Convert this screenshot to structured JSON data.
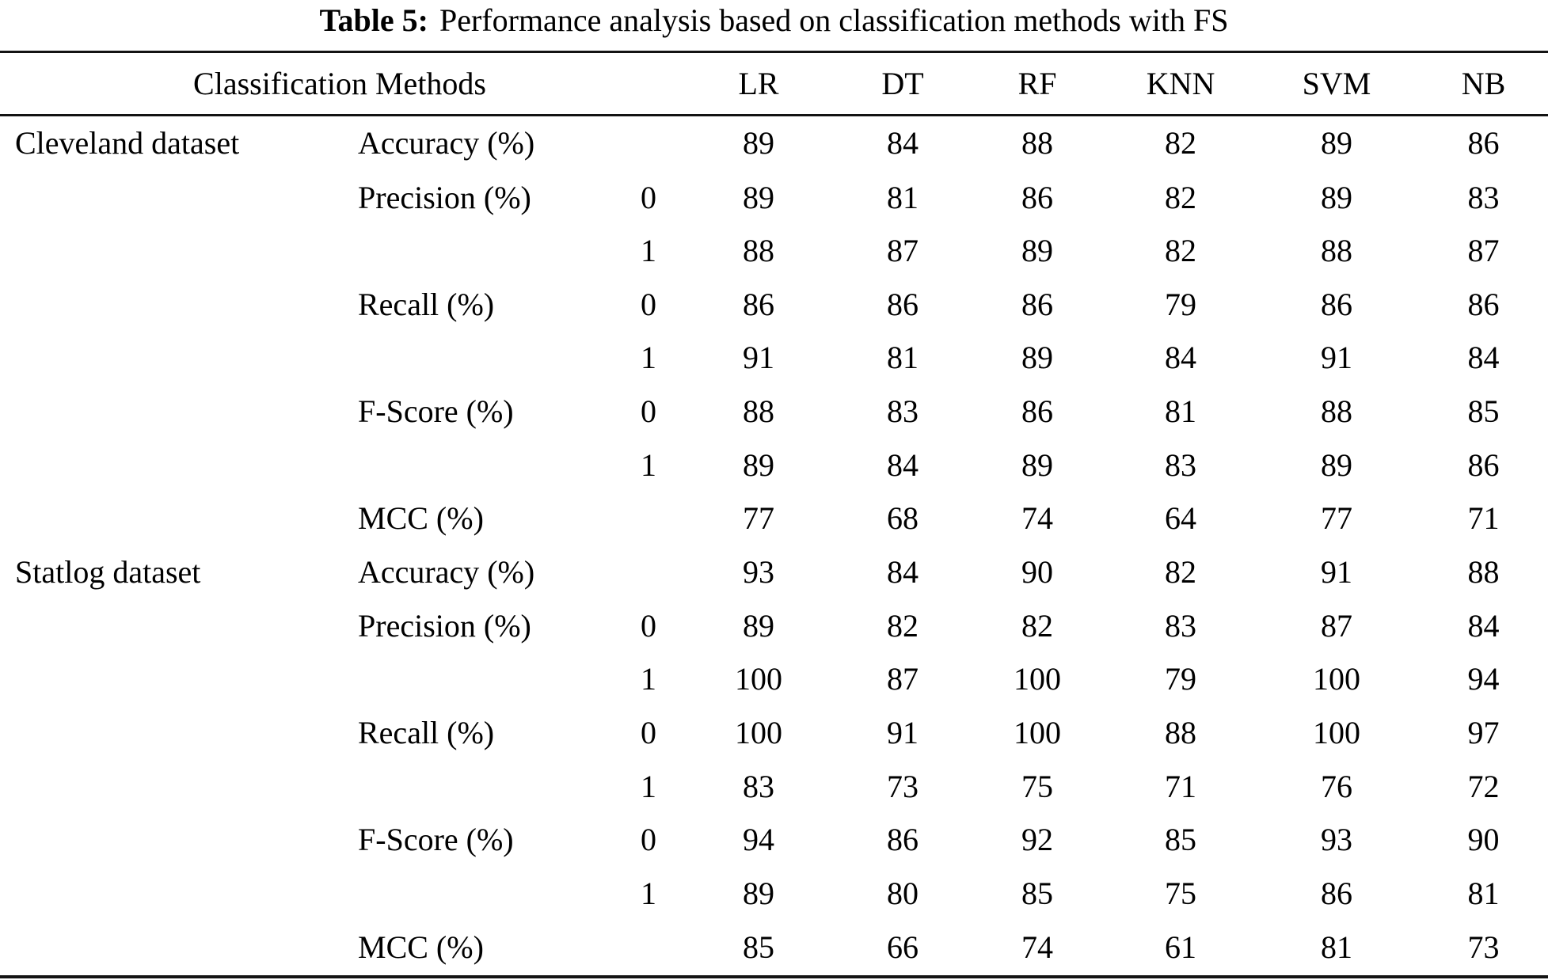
{
  "title": {
    "label": "Table 5:",
    "text": "Performance analysis based on classification methods with FS"
  },
  "table": {
    "header": {
      "group": "Classification Methods",
      "methods": [
        "LR",
        "DT",
        "RF",
        "KNN",
        "SVM",
        "NB"
      ]
    },
    "rows": [
      {
        "dataset": "Cleveland dataset",
        "metric": "Accuracy (%)",
        "class": "",
        "values": [
          "89",
          "84",
          "88",
          "82",
          "89",
          "86"
        ]
      },
      {
        "dataset": "",
        "metric": "Precision (%)",
        "class": "0",
        "values": [
          "89",
          "81",
          "86",
          "82",
          "89",
          "83"
        ]
      },
      {
        "dataset": "",
        "metric": "",
        "class": "1",
        "values": [
          "88",
          "87",
          "89",
          "82",
          "88",
          "87"
        ]
      },
      {
        "dataset": "",
        "metric": "Recall (%)",
        "class": "0",
        "values": [
          "86",
          "86",
          "86",
          "79",
          "86",
          "86"
        ]
      },
      {
        "dataset": "",
        "metric": "",
        "class": "1",
        "values": [
          "91",
          "81",
          "89",
          "84",
          "91",
          "84"
        ]
      },
      {
        "dataset": "",
        "metric": "F-Score (%)",
        "class": "0",
        "values": [
          "88",
          "83",
          "86",
          "81",
          "88",
          "85"
        ]
      },
      {
        "dataset": "",
        "metric": "",
        "class": "1",
        "values": [
          "89",
          "84",
          "89",
          "83",
          "89",
          "86"
        ]
      },
      {
        "dataset": "",
        "metric": "MCC (%)",
        "class": "",
        "values": [
          "77",
          "68",
          "74",
          "64",
          "77",
          "71"
        ]
      },
      {
        "dataset": "Statlog dataset",
        "metric": "Accuracy (%)",
        "class": "",
        "values": [
          "93",
          "84",
          "90",
          "82",
          "91",
          "88"
        ]
      },
      {
        "dataset": "",
        "metric": "Precision (%)",
        "class": "0",
        "values": [
          "89",
          "82",
          "82",
          "83",
          "87",
          "84"
        ]
      },
      {
        "dataset": "",
        "metric": "",
        "class": "1",
        "values": [
          "100",
          "87",
          "100",
          "79",
          "100",
          "94"
        ]
      },
      {
        "dataset": "",
        "metric": "Recall (%)",
        "class": "0",
        "values": [
          "100",
          "91",
          "100",
          "88",
          "100",
          "97"
        ]
      },
      {
        "dataset": "",
        "metric": "",
        "class": "1",
        "values": [
          "83",
          "73",
          "75",
          "71",
          "76",
          "72"
        ]
      },
      {
        "dataset": "",
        "metric": "F-Score (%)",
        "class": "0",
        "values": [
          "94",
          "86",
          "92",
          "85",
          "93",
          "90"
        ]
      },
      {
        "dataset": "",
        "metric": "",
        "class": "1",
        "values": [
          "89",
          "80",
          "85",
          "75",
          "86",
          "81"
        ]
      },
      {
        "dataset": "",
        "metric": "MCC (%)",
        "class": "",
        "values": [
          "85",
          "66",
          "74",
          "61",
          "81",
          "73"
        ]
      }
    ]
  },
  "colors": {
    "text": "#000000",
    "rule": "#131313",
    "background": "#ffffff"
  }
}
